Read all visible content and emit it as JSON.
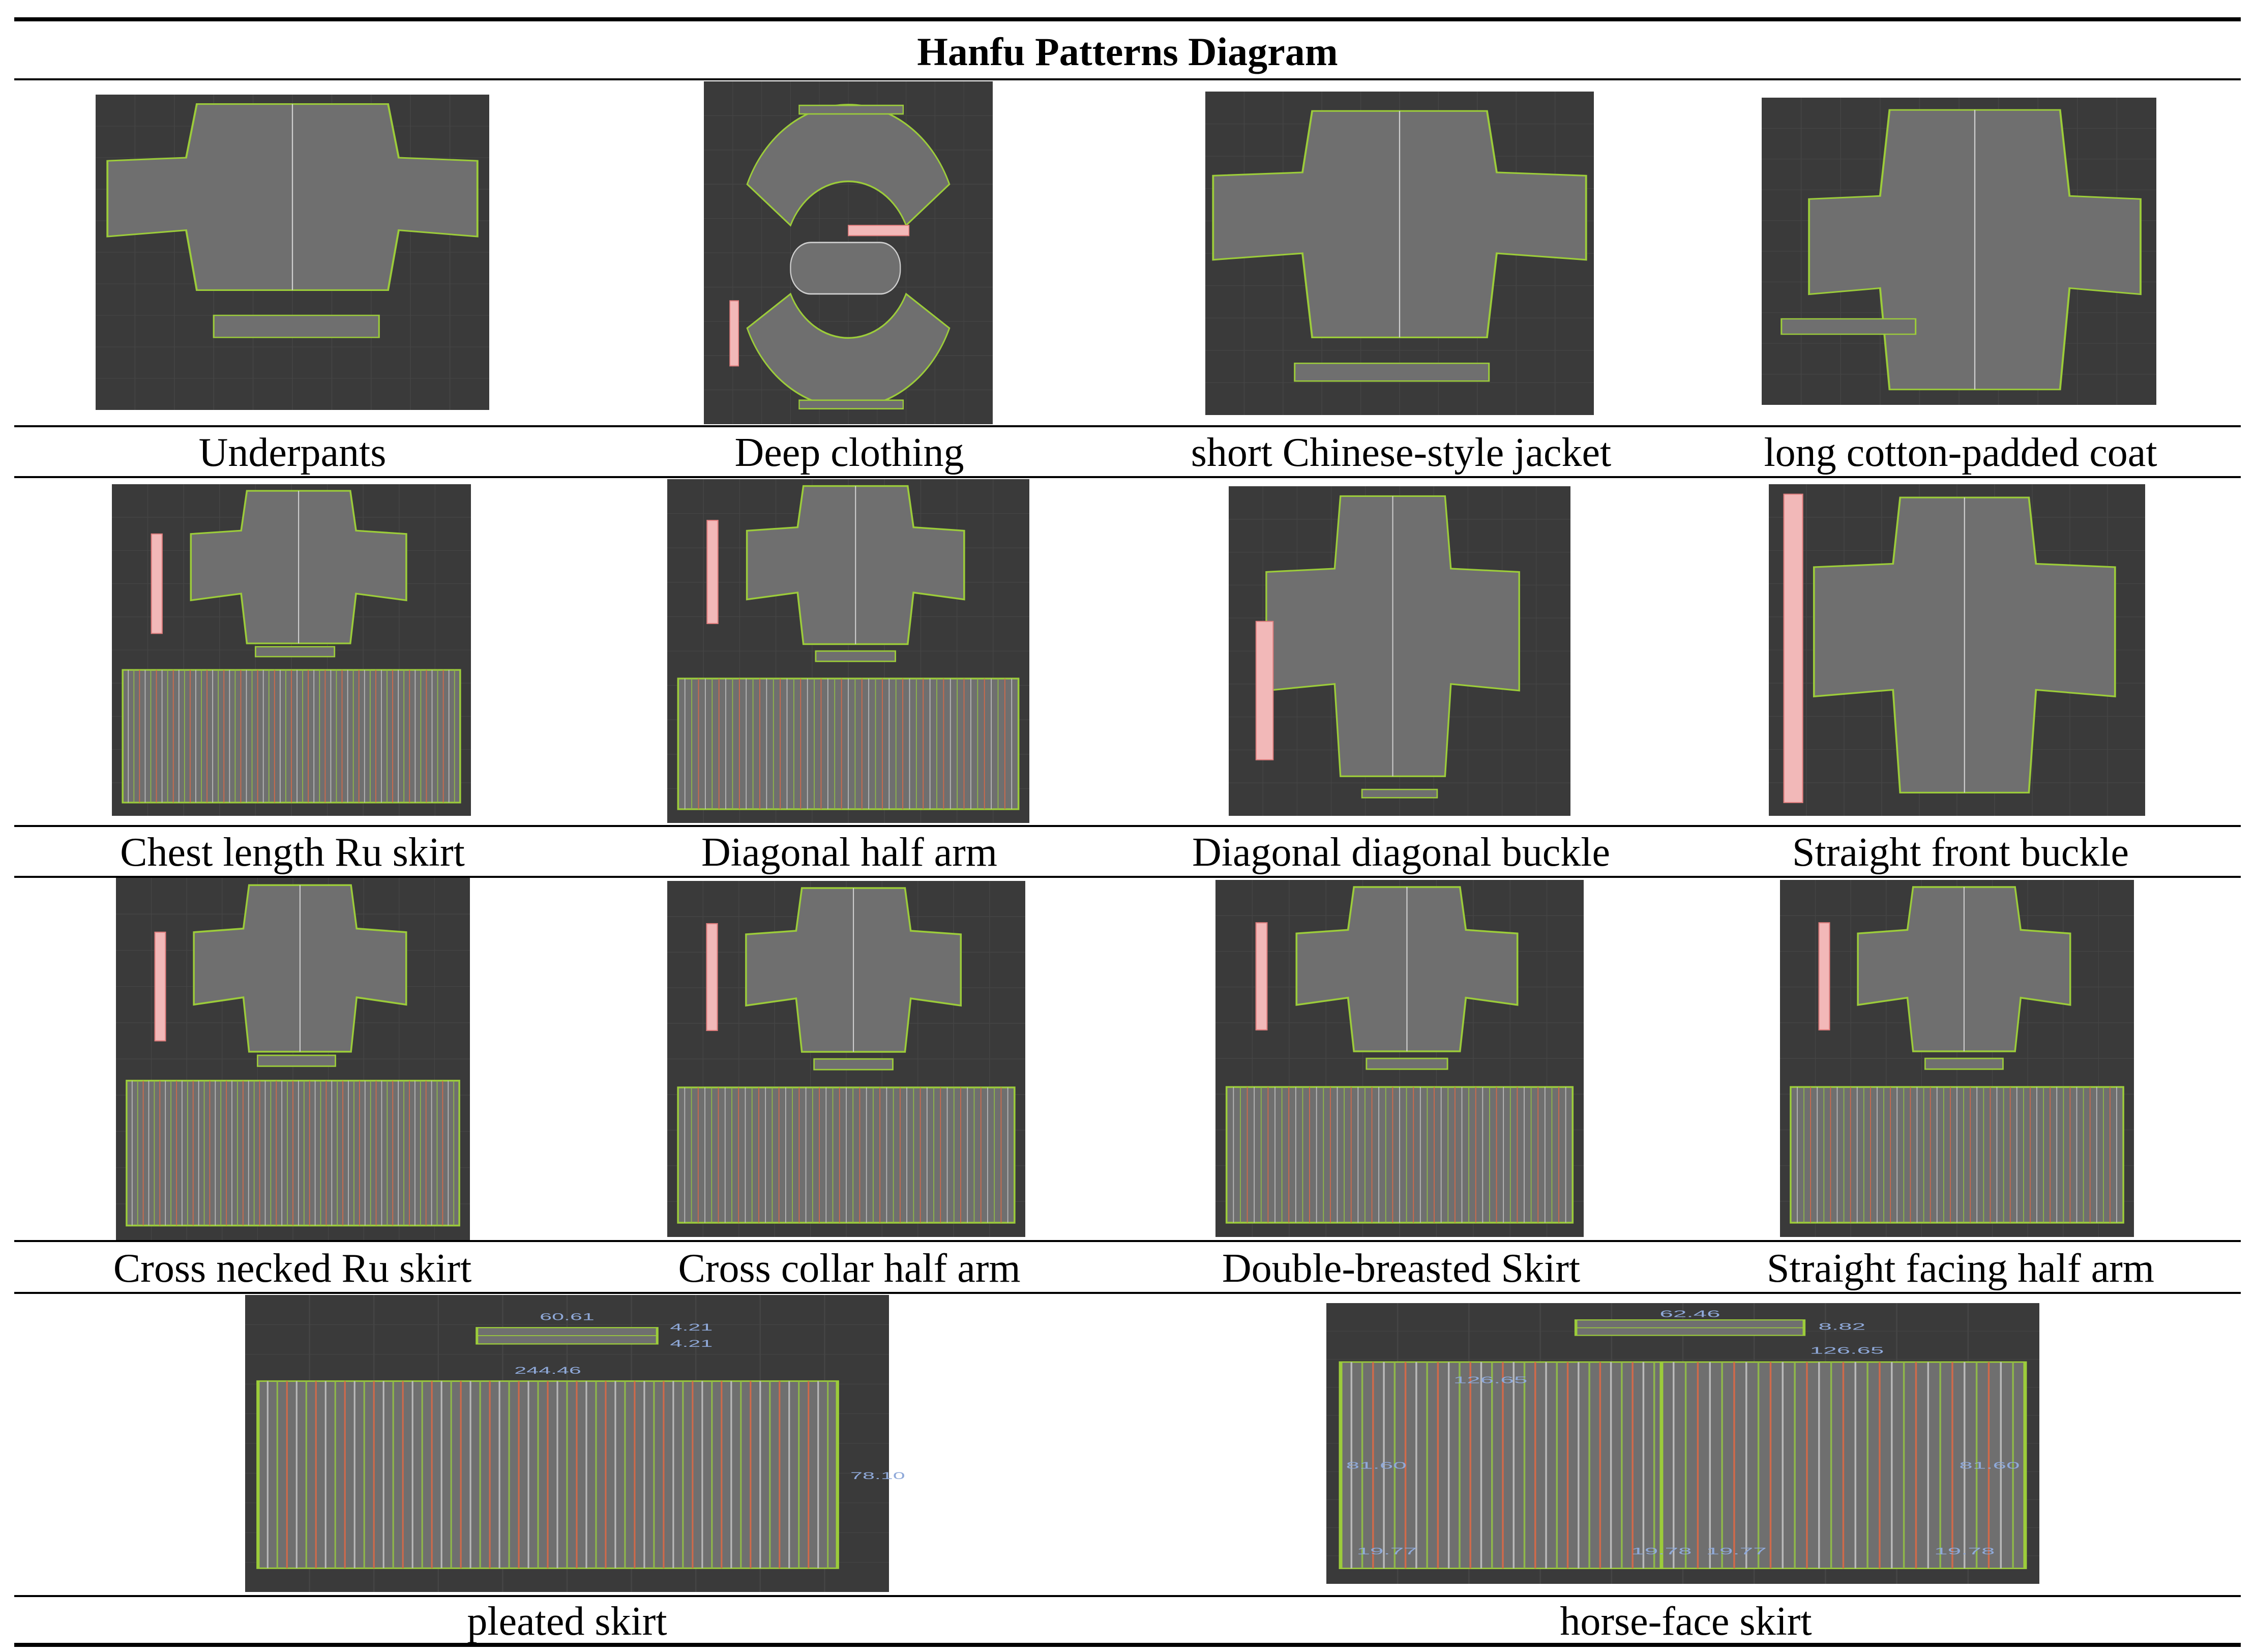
{
  "title": "Hanfu Patterns Diagram",
  "colors": {
    "panel_bg": "#3a3a3a",
    "piece_fill": "#6f6f6f",
    "outline": "#9ccc3a",
    "accent_line": "#d06a4a",
    "pink": "#f2b8b8"
  },
  "rows": [
    {
      "items": [
        {
          "caption": "Underpants",
          "kind": "jacket_shorts"
        },
        {
          "caption": "Deep clothing",
          "kind": "arcs"
        },
        {
          "caption": "short Chinese-style jacket",
          "kind": "jacket"
        },
        {
          "caption": "long cotton-padded coat",
          "kind": "coat"
        }
      ]
    },
    {
      "items": [
        {
          "caption": "Chest length Ru skirt",
          "kind": "cross_skirt"
        },
        {
          "caption": "Diagonal half arm",
          "kind": "cross_skirt2"
        },
        {
          "caption": "Diagonal diagonal buckle",
          "kind": "cross_wide"
        },
        {
          "caption": "Straight front buckle",
          "kind": "cross_wide2"
        }
      ]
    },
    {
      "items": [
        {
          "caption": "Cross necked Ru skirt",
          "kind": "cross_skirt"
        },
        {
          "caption": "Cross collar half arm",
          "kind": "cross_skirt2"
        },
        {
          "caption": "Double-breasted Skirt",
          "kind": "cross_skirt2"
        },
        {
          "caption": "Straight facing half arm",
          "kind": "cross_skirt2"
        }
      ]
    },
    {
      "items": [
        {
          "caption": "pleated skirt",
          "kind": "pleated",
          "labels": [
            "60.61",
            "4.21",
            "4.21",
            "244.46",
            "78.10"
          ]
        },
        {
          "caption": "horse-face skirt",
          "kind": "horseface",
          "labels": [
            "62.46",
            "8.82",
            "126.65",
            "126.65",
            "81.60",
            "81.60",
            "19.77",
            "19.78",
            "19.77",
            "19.78"
          ]
        }
      ]
    }
  ]
}
